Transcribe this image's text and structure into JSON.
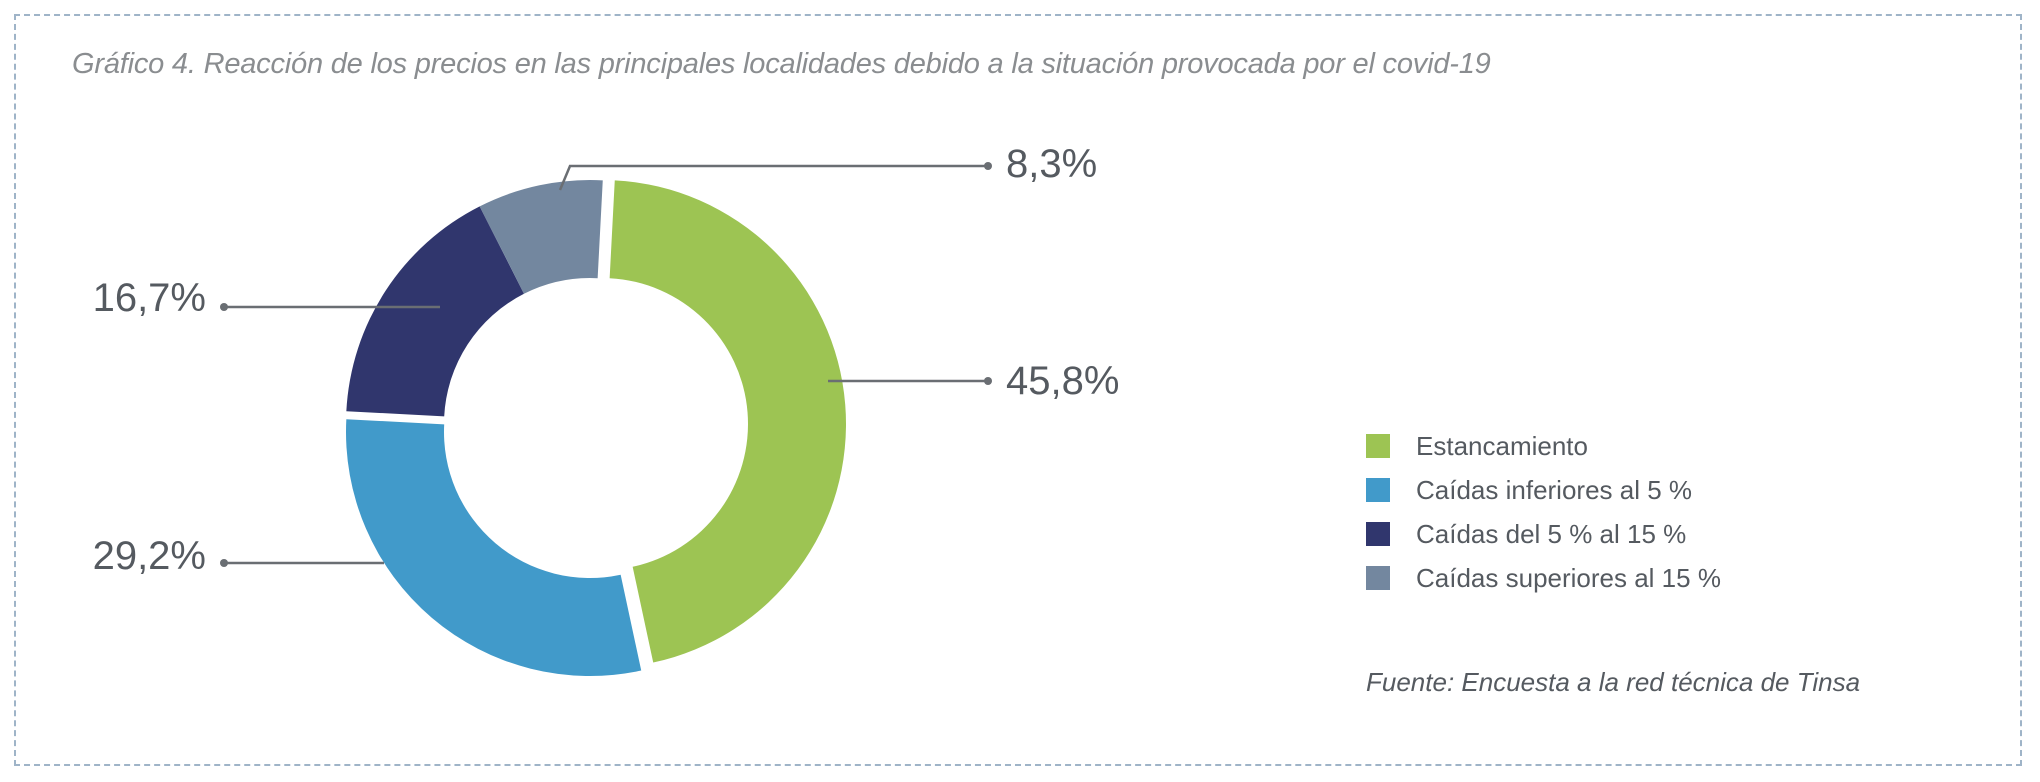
{
  "chart_data": {
    "type": "pie",
    "title": "Gráfico 4. Reacción de los precios en las principales localidades debido a la situación provocada por el covid-19",
    "categories": [
      "Estancamiento",
      "Caídas inferiores al 5 %",
      "Caídas del 5 % al 15 %",
      "Caídas superiores al 15 %"
    ],
    "values": [
      45.8,
      29.2,
      16.7,
      8.3
    ],
    "data_labels": [
      "45,8%",
      "29,2%",
      "16,7%",
      "8,3%"
    ],
    "colors": [
      "#9dc453",
      "#419aca",
      "#30366d",
      "#73879f"
    ],
    "donut": true,
    "legend_position": "right",
    "source": "Fuente: Encuesta a la red técnica de Tinsa"
  }
}
